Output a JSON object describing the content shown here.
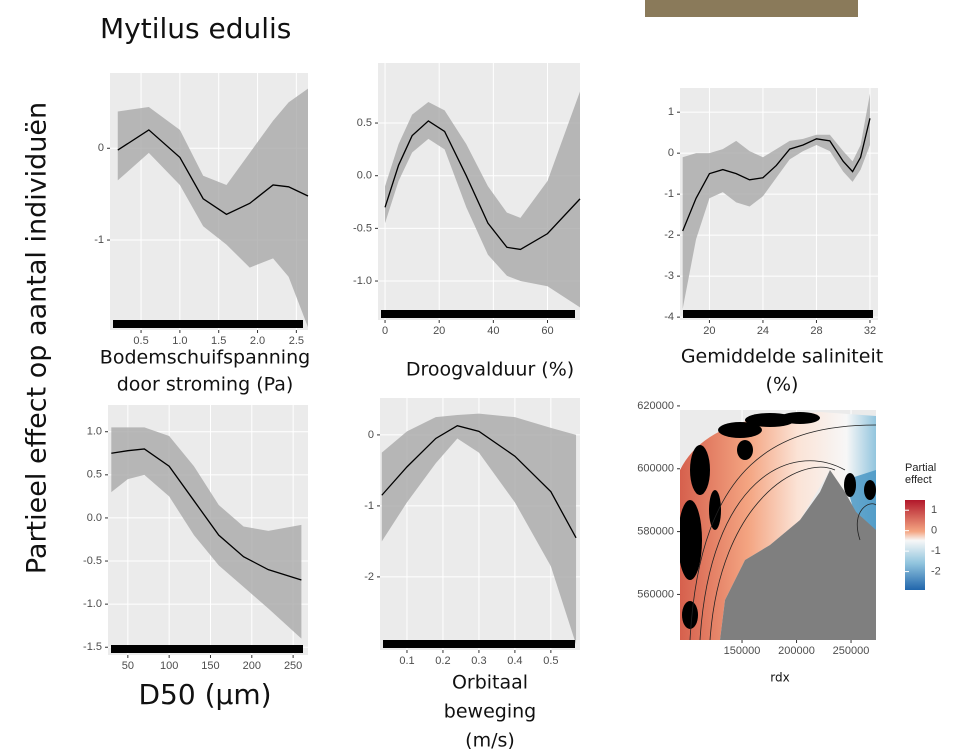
{
  "title": "Mytilus edulis",
  "ylabel": "Partieel effect op aantal individuën",
  "chart_data": [
    {
      "type": "line",
      "xlabel": [
        "Bodemschuifspanning",
        "door stroming (Pa)"
      ],
      "x": [
        0.2,
        0.6,
        1.0,
        1.3,
        1.6,
        1.9,
        2.2,
        2.4,
        2.65
      ],
      "values": [
        -0.02,
        0.2,
        -0.1,
        -0.55,
        -0.72,
        -0.6,
        -0.4,
        -0.42,
        -0.52
      ],
      "ci_upper": [
        0.4,
        0.45,
        0.2,
        -0.3,
        -0.4,
        -0.05,
        0.3,
        0.5,
        0.65
      ],
      "ci_lower": [
        -0.35,
        -0.05,
        -0.4,
        -0.85,
        -1.05,
        -1.3,
        -1.2,
        -1.4,
        -1.95
      ],
      "xlim": [
        0.1,
        2.65
      ],
      "ylim": [
        -1.98,
        0.82
      ],
      "xticks": [
        0.5,
        {
          "value": 1.0,
          "label": "1.0"
        },
        1.5,
        {
          "value": 2.0,
          "label": "2.0"
        },
        2.5
      ],
      "yticks": [
        0,
        -1
      ]
    },
    {
      "type": "line",
      "xlabel": [
        "Droogvalduur (%)"
      ],
      "x": [
        0,
        5,
        10,
        16,
        22,
        30,
        38,
        45,
        50,
        60,
        72
      ],
      "values": [
        -0.3,
        0.1,
        0.38,
        0.52,
        0.42,
        0.0,
        -0.45,
        -0.68,
        -0.7,
        -0.55,
        -0.22
      ],
      "ci_upper": [
        -0.1,
        0.3,
        0.58,
        0.7,
        0.62,
        0.3,
        -0.1,
        -0.35,
        -0.4,
        -0.05,
        0.8
      ],
      "ci_lower": [
        -0.45,
        -0.05,
        0.22,
        0.35,
        0.25,
        -0.3,
        -0.75,
        -0.95,
        -1.0,
        -1.05,
        -1.25
      ],
      "xlim": [
        -2.6,
        72
      ],
      "ylim": [
        -1.37,
        1.07
      ],
      "xticks": [
        0,
        20,
        40,
        60
      ],
      "yticks": [
        0.5,
        {
          "value": 0.0,
          "label": "0.0"
        },
        -0.5,
        {
          "value": -1.0,
          "label": "-1.0"
        }
      ]
    },
    {
      "type": "line",
      "xlabel": [
        "Gemiddelde saliniteit",
        "(%)"
      ],
      "x": [
        18,
        19,
        20,
        21,
        22,
        23,
        24,
        25,
        26,
        27,
        28,
        29,
        30,
        30.7,
        31.3,
        32
      ],
      "values": [
        -1.9,
        -1.1,
        -0.5,
        -0.4,
        -0.5,
        -0.65,
        -0.6,
        -0.3,
        0.1,
        0.2,
        0.35,
        0.3,
        -0.2,
        -0.45,
        -0.1,
        0.85
      ],
      "ci_upper": [
        -0.1,
        0,
        0,
        0.1,
        0.3,
        0.05,
        -0.1,
        0.1,
        0.3,
        0.35,
        0.45,
        0.45,
        0.05,
        -0.2,
        0.2,
        1.45
      ],
      "ci_lower": [
        -3.8,
        -2.1,
        -1.1,
        -0.95,
        -1.2,
        -1.3,
        -1.05,
        -0.6,
        -0.15,
        0.05,
        0.2,
        0.05,
        -0.45,
        -0.7,
        -0.4,
        0.2
      ],
      "xlim": [
        17.8,
        32.6
      ],
      "ylim": [
        -4.07,
        1.59
      ],
      "xticks": [
        20,
        24,
        28,
        32
      ],
      "yticks": [
        1,
        0,
        -1,
        -2,
        -3,
        -4
      ]
    },
    {
      "type": "line",
      "xlabel": [
        "D50 (µm)"
      ],
      "x": [
        30,
        50,
        70,
        100,
        130,
        160,
        190,
        220,
        260
      ],
      "values": [
        0.75,
        0.78,
        0.8,
        0.6,
        0.2,
        -0.2,
        -0.45,
        -0.6,
        -0.72
      ],
      "ci_upper": [
        1.05,
        1.05,
        1.05,
        0.95,
        0.6,
        0.15,
        -0.1,
        -0.15,
        -0.08
      ],
      "ci_lower": [
        0.3,
        0.45,
        0.5,
        0.25,
        -0.2,
        -0.55,
        -0.8,
        -1.05,
        -1.4
      ],
      "xlim": [
        26,
        268
      ],
      "ylim": [
        -1.59,
        1.31
      ],
      "xticks": [
        50,
        100,
        150,
        200,
        250
      ],
      "yticks": [
        {
          "value": 1.0,
          "label": "1.0"
        },
        0.5,
        {
          "value": 0.0,
          "label": "0.0"
        },
        -0.5,
        {
          "value": -1.0,
          "label": "-1.0"
        },
        -1.5
      ]
    },
    {
      "type": "line",
      "xlabel": [
        "Orbitaal",
        "beweging",
        "(m/s)"
      ],
      "x": [
        0.03,
        0.1,
        0.18,
        0.24,
        0.3,
        0.4,
        0.5,
        0.57
      ],
      "values": [
        -0.85,
        -0.45,
        -0.05,
        0.13,
        0.05,
        -0.3,
        -0.8,
        -1.45
      ],
      "ci_upper": [
        -0.25,
        0.05,
        0.25,
        0.28,
        0.3,
        0.25,
        0.1,
        0.0
      ],
      "ci_lower": [
        -1.5,
        -0.95,
        -0.4,
        -0.05,
        -0.25,
        -0.95,
        -1.85,
        -2.95
      ],
      "xlim": [
        0.025,
        0.581
      ],
      "ylim": [
        -3.03,
        0.52
      ],
      "xticks": [
        0.1,
        0.2,
        0.3,
        0.4,
        0.5
      ],
      "yticks": [
        0,
        -1,
        -2
      ]
    },
    {
      "type": "contour",
      "xlabel": [
        "rdx"
      ],
      "xlim": [
        93100,
        272900
      ],
      "ylim": [
        545500,
        618700
      ],
      "xticks": [
        150000,
        200000,
        250000
      ],
      "yticks": [
        620000,
        600000,
        580000,
        560000
      ],
      "legend_title": [
        "Partial",
        "effect"
      ],
      "colorbar_lim": [
        -2.9,
        1.5
      ],
      "colorbar_ticks": [
        1,
        0,
        -1,
        -2
      ]
    }
  ]
}
